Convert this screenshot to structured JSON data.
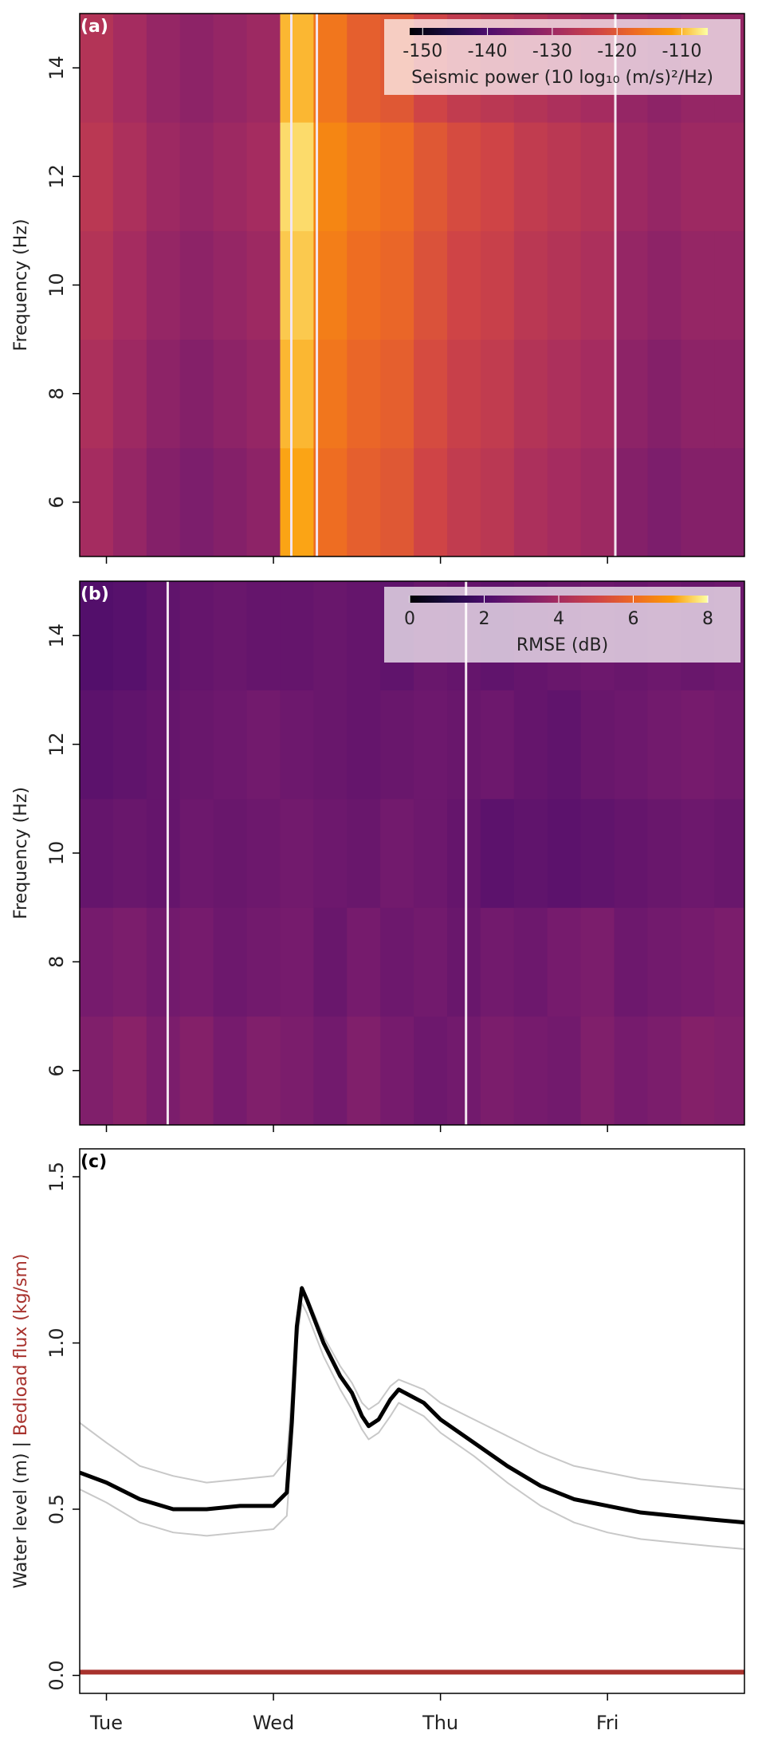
{
  "chart_data": [
    {
      "type": "heatmap",
      "label": "(a)",
      "ylabel": "Frequency (Hz)",
      "xlim": [
        -0.16,
        3.82
      ],
      "xticks": [
        0,
        1,
        2,
        3
      ],
      "ylim": [
        5,
        15
      ],
      "yticks": [
        6,
        8,
        10,
        12,
        14
      ],
      "x": [
        -0.06,
        0.14,
        0.34,
        0.54,
        0.74,
        0.94,
        1.14,
        1.34,
        1.54,
        1.74,
        1.94,
        2.14,
        2.34,
        2.54,
        2.74,
        2.94,
        3.14,
        3.34,
        3.54,
        3.74
      ],
      "y": [
        6,
        8,
        10,
        12,
        14
      ],
      "z": [
        [
          -129,
          -131,
          -133,
          -134,
          -133,
          -132,
          -111,
          -117,
          -119,
          -120,
          -123,
          -125,
          -126,
          -128,
          -129,
          -130,
          -133,
          -134,
          -133,
          -133
        ],
        [
          -128,
          -130,
          -132,
          -133,
          -132,
          -131,
          -110,
          -116,
          -118,
          -119,
          -122,
          -124,
          -125,
          -127,
          -128,
          -129,
          -132,
          -133,
          -132,
          -132
        ],
        [
          -127,
          -129,
          -131,
          -132,
          -131,
          -130,
          -109,
          -115,
          -117,
          -118,
          -121,
          -123,
          -124,
          -126,
          -127,
          -128,
          -131,
          -132,
          -131,
          -131
        ],
        [
          -126,
          -128,
          -130,
          -131,
          -130,
          -129,
          -108,
          -114,
          -116,
          -117,
          -120,
          -122,
          -123,
          -125,
          -126,
          -127,
          -130,
          -131,
          -130,
          -130
        ],
        [
          -127,
          -129,
          -131,
          -132,
          -131,
          -130,
          -110,
          -116,
          -119,
          -120,
          -123,
          -125,
          -126,
          -127,
          -128,
          -129,
          -131,
          -132,
          -131,
          -131
        ]
      ],
      "gaps": [
        1.107,
        1.26,
        3.047
      ],
      "colormap": "inferno",
      "clim": [
        -152,
        -106
      ],
      "cticks": [
        -150,
        -140,
        -130,
        -120,
        -110
      ],
      "colorbar_label": "Seismic power (10 log₁₀ (m/s)²/Hz)"
    },
    {
      "type": "heatmap",
      "label": "(b)",
      "ylabel": "Frequency (Hz)",
      "xlim": [
        -0.16,
        3.82
      ],
      "xticks": [
        0,
        1,
        2,
        3
      ],
      "ylim": [
        5,
        15
      ],
      "yticks": [
        6,
        8,
        10,
        12,
        14
      ],
      "x": [
        -0.06,
        0.14,
        0.34,
        0.54,
        0.74,
        0.94,
        1.14,
        1.34,
        1.54,
        1.74,
        1.94,
        2.14,
        2.34,
        2.54,
        2.74,
        2.94,
        3.14,
        3.34,
        3.54,
        3.74
      ],
      "y": [
        6,
        8,
        10,
        12,
        14
      ],
      "z": [
        [
          3.2,
          3.4,
          3.1,
          3.3,
          3.0,
          3.2,
          3.1,
          2.9,
          3.2,
          3.0,
          2.8,
          2.9,
          3.1,
          3.0,
          2.9,
          3.2,
          3.0,
          3.1,
          3.3,
          3.2
        ],
        [
          3.0,
          3.1,
          2.9,
          3.0,
          2.8,
          2.9,
          3.0,
          2.7,
          3.0,
          2.8,
          2.9,
          2.7,
          2.9,
          2.8,
          3.0,
          3.1,
          2.8,
          2.9,
          3.0,
          3.1
        ],
        [
          2.6,
          2.7,
          2.6,
          2.8,
          2.7,
          2.8,
          2.9,
          2.8,
          2.7,
          2.9,
          2.8,
          2.6,
          2.4,
          2.5,
          2.4,
          2.5,
          2.6,
          2.7,
          2.8,
          2.7
        ],
        [
          2.4,
          2.5,
          2.6,
          2.7,
          2.8,
          2.9,
          2.8,
          2.7,
          2.6,
          2.7,
          2.8,
          2.7,
          2.8,
          2.6,
          2.5,
          2.7,
          2.8,
          2.9,
          3.0,
          2.9
        ],
        [
          2.2,
          2.3,
          2.5,
          2.6,
          2.7,
          2.6,
          2.6,
          2.7,
          2.6,
          2.5,
          2.7,
          2.6,
          2.5,
          2.6,
          2.7,
          2.8,
          2.7,
          2.8,
          2.7,
          2.8
        ]
      ],
      "gaps": [
        0.367,
        2.153
      ],
      "colormap": "inferno",
      "clim": [
        0,
        8
      ],
      "cticks": [
        0,
        2,
        4,
        6,
        8
      ],
      "colorbar_label": "RMSE (dB)"
    },
    {
      "type": "line",
      "label": "(c)",
      "ylabel": [
        "Water level (m)",
        "|",
        "Bedload flux (kg/sm)"
      ],
      "xlim": [
        -0.16,
        3.82
      ],
      "xticks": [
        {
          "value": 0,
          "label": "Tue"
        },
        {
          "value": 1,
          "label": "Wed"
        },
        {
          "value": 2,
          "label": "Thu"
        },
        {
          "value": 3,
          "label": "Fri"
        }
      ],
      "ylim": [
        -0.054,
        1.584
      ],
      "yticks": [
        {
          "value": 0,
          "label": "0.0"
        },
        {
          "value": 0.5,
          "label": "0.5"
        },
        {
          "value": 1,
          "label": "1.0"
        },
        {
          "value": 1.5,
          "label": "1.5"
        }
      ],
      "x": [
        -0.16,
        0,
        0.2,
        0.4,
        0.6,
        0.8,
        1.0,
        1.08,
        1.11,
        1.14,
        1.17,
        1.2,
        1.3,
        1.4,
        1.47,
        1.53,
        1.57,
        1.63,
        1.7,
        1.75,
        1.9,
        2.0,
        2.2,
        2.4,
        2.6,
        2.8,
        3.0,
        3.2,
        3.4,
        3.6,
        3.82
      ],
      "series": [
        {
          "color": "#c8c8c8",
          "values": [
            0.76,
            0.7,
            0.63,
            0.6,
            0.58,
            0.59,
            0.6,
            0.65,
            0.85,
            1.08,
            1.17,
            1.14,
            1.02,
            0.93,
            0.88,
            0.82,
            0.8,
            0.82,
            0.87,
            0.89,
            0.86,
            0.82,
            0.77,
            0.72,
            0.67,
            0.63,
            0.61,
            0.59,
            0.58,
            0.57,
            0.56
          ]
        },
        {
          "color": "#c8c8c8",
          "values": [
            0.56,
            0.52,
            0.46,
            0.43,
            0.42,
            0.43,
            0.44,
            0.48,
            0.7,
            1.0,
            1.12,
            1.09,
            0.96,
            0.86,
            0.8,
            0.74,
            0.71,
            0.73,
            0.78,
            0.82,
            0.78,
            0.73,
            0.66,
            0.58,
            0.51,
            0.46,
            0.43,
            0.41,
            0.4,
            0.39,
            0.38
          ]
        },
        {
          "color": "#000000",
          "values": [
            0.61,
            0.58,
            0.53,
            0.5,
            0.5,
            0.51,
            0.51,
            0.55,
            0.76,
            1.05,
            1.165,
            1.13,
            1.0,
            0.9,
            0.85,
            0.78,
            0.75,
            0.77,
            0.83,
            0.86,
            0.82,
            0.77,
            0.7,
            0.63,
            0.57,
            0.53,
            0.51,
            0.49,
            0.48,
            0.47,
            0.46
          ]
        },
        {
          "color": "#a8322d",
          "values": [
            0.01,
            0.01,
            0.01,
            0.01,
            0.01,
            0.01,
            0.01,
            0.01,
            0.01,
            0.01,
            0.01,
            0.01,
            0.01,
            0.01,
            0.01,
            0.01,
            0.01,
            0.01,
            0.01,
            0.01,
            0.01,
            0.01,
            0.01,
            0.01,
            0.01,
            0.01,
            0.01,
            0.01,
            0.01,
            0.01,
            0.01
          ]
        }
      ]
    }
  ]
}
